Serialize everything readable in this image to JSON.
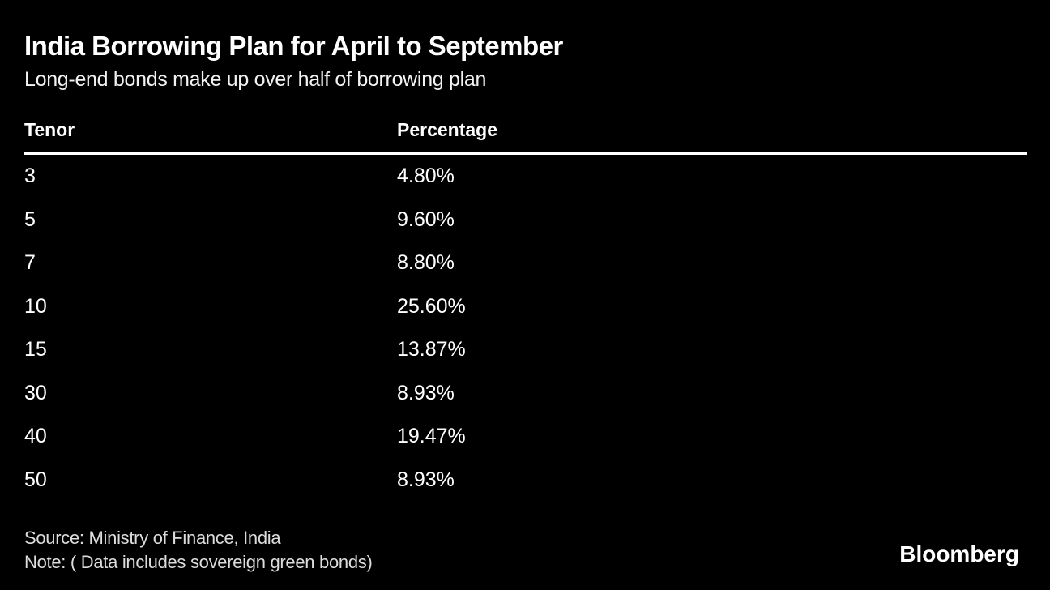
{
  "header": {
    "title": "India Borrowing Plan for April to September",
    "subtitle": "Long-end bonds make up over half of borrowing plan"
  },
  "table": {
    "columns": [
      "Tenor",
      "Percentage"
    ],
    "rows": [
      {
        "tenor": "3",
        "percentage": "4.80%"
      },
      {
        "tenor": "5",
        "percentage": "9.60%"
      },
      {
        "tenor": "7",
        "percentage": "8.80%"
      },
      {
        "tenor": "10",
        "percentage": "25.60%"
      },
      {
        "tenor": "15",
        "percentage": "13.87%"
      },
      {
        "tenor": "30",
        "percentage": "8.93%"
      },
      {
        "tenor": "40",
        "percentage": "19.47%"
      },
      {
        "tenor": "50",
        "percentage": "8.93%"
      }
    ]
  },
  "footer": {
    "source_line": "Source: Ministry of Finance, India",
    "note_line": "Note: ( Data includes sovereign green bonds)",
    "brand": "Bloomberg"
  },
  "colors": {
    "background": "#000000",
    "text": "#ffffff",
    "footer_text": "#dcdcdc",
    "divider": "#ffffff"
  },
  "chart_data": {
    "type": "table",
    "title": "India Borrowing Plan for April to September",
    "subtitle": "Long-end bonds make up over half of borrowing plan",
    "columns": [
      "Tenor",
      "Percentage"
    ],
    "categories": [
      "3",
      "5",
      "7",
      "10",
      "15",
      "30",
      "40",
      "50"
    ],
    "values": [
      4.8,
      9.6,
      8.8,
      25.6,
      13.87,
      8.93,
      19.47,
      8.93
    ],
    "value_unit": "percent",
    "source": "Ministry of Finance, India",
    "note": "( Data includes sovereign green bonds)",
    "legend_position": "none",
    "grid": false
  }
}
